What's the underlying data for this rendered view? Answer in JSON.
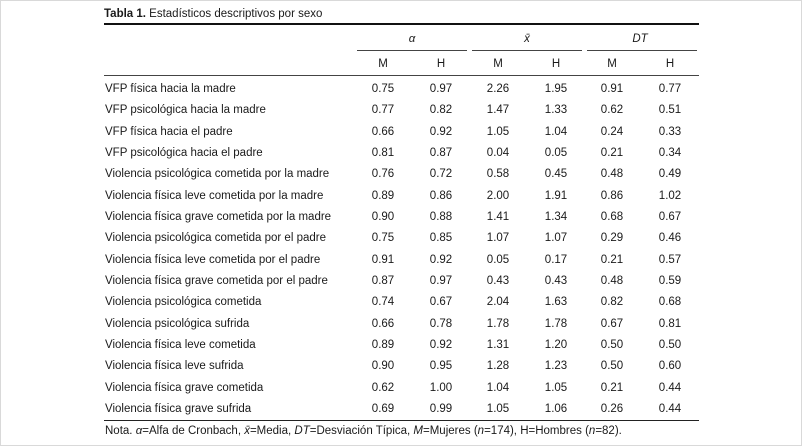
{
  "caption": {
    "label": "Tabla 1.",
    "text": "Estadísticos descriptivos por sexo"
  },
  "headers": {
    "groups": [
      "α",
      "x̄",
      "DT"
    ],
    "sub": [
      "M",
      "H",
      "M",
      "H",
      "M",
      "H"
    ]
  },
  "rows": [
    {
      "label": "VFP física hacia la madre",
      "values": [
        "0.75",
        "0.97",
        "2.26",
        "1.95",
        "0.91",
        "0.77"
      ]
    },
    {
      "label": "VFP psicológica hacia la madre",
      "values": [
        "0.77",
        "0.82",
        "1.47",
        "1.33",
        "0.62",
        "0.51"
      ]
    },
    {
      "label": "VFP física hacia el padre",
      "values": [
        "0.66",
        "0.92",
        "1.05",
        "1.04",
        "0.24",
        "0.33"
      ]
    },
    {
      "label": "VFP psicológica hacia el padre",
      "values": [
        "0.81",
        "0.87",
        "0.04",
        "0.05",
        "0.21",
        "0.34"
      ]
    },
    {
      "label": "Violencia psicológica cometida por la madre",
      "values": [
        "0.76",
        "0.72",
        "0.58",
        "0.45",
        "0.48",
        "0.49"
      ]
    },
    {
      "label": "Violencia física leve cometida por la madre",
      "values": [
        "0.89",
        "0.86",
        "2.00",
        "1.91",
        "0.86",
        "1.02"
      ]
    },
    {
      "label": "Violencia física grave cometida por la madre",
      "values": [
        "0.90",
        "0.88",
        "1.41",
        "1.34",
        "0.68",
        "0.67"
      ]
    },
    {
      "label": "Violencia psicológica cometida por el padre",
      "values": [
        "0.75",
        "0.85",
        "1.07",
        "1.07",
        "0.29",
        "0.46"
      ]
    },
    {
      "label": "Violencia física leve cometida por el padre",
      "values": [
        "0.91",
        "0.92",
        "0.05",
        "0.17",
        "0.21",
        "0.57"
      ]
    },
    {
      "label": "Violencia física grave cometida por el padre",
      "values": [
        "0.87",
        "0.97",
        "0.43",
        "0.43",
        "0.48",
        "0.59"
      ]
    },
    {
      "label": "Violencia psicológica cometida",
      "values": [
        "0.74",
        "0.67",
        "2.04",
        "1.63",
        "0.82",
        "0.68"
      ]
    },
    {
      "label": "Violencia psicológica sufrida",
      "values": [
        "0.66",
        "0.78",
        "1.78",
        "1.78",
        "0.67",
        "0.81"
      ]
    },
    {
      "label": "Violencia física leve cometida",
      "values": [
        "0.89",
        "0.92",
        "1.31",
        "1.20",
        "0.50",
        "0.50"
      ]
    },
    {
      "label": "Violencia física leve sufrida",
      "values": [
        "0.90",
        "0.95",
        "1.28",
        "1.23",
        "0.50",
        "0.60"
      ]
    },
    {
      "label": "Violencia física grave cometida",
      "values": [
        "0.62",
        "1.00",
        "1.04",
        "1.05",
        "0.21",
        "0.44"
      ]
    },
    {
      "label": "Violencia física grave sufrida",
      "values": [
        "0.69",
        "0.99",
        "1.05",
        "1.06",
        "0.26",
        "0.44"
      ]
    }
  ],
  "note": {
    "prefix": "Nota. ",
    "sym_alpha": "α",
    "t1": "=Alfa de Cronbach, ",
    "sym_mean": "x̄",
    "t2": "=Media, ",
    "sym_dt": "DT",
    "t3": "=Desviación Típica, ",
    "sym_m": "M",
    "t4": "=Mujeres (",
    "sym_n1": "n",
    "t5": "=174), H=Hombres (",
    "sym_n2": "n",
    "t6": "=82)."
  }
}
